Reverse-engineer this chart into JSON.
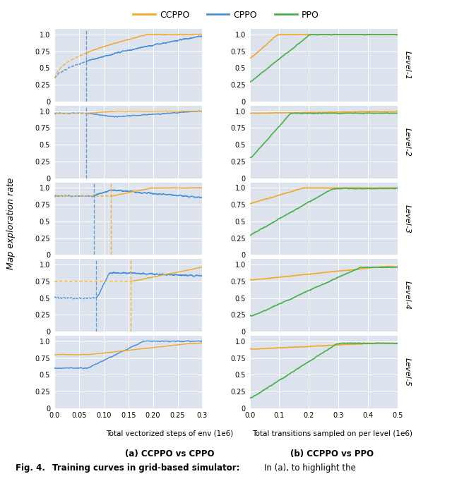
{
  "ccppo_color": "#f5a623",
  "cppo_color": "#4a90d9",
  "ppo_color": "#4caf50",
  "bg_color": "#dde3ec",
  "levels": [
    "Level-1",
    "Level-2",
    "Level-3",
    "Level-4",
    "Level-5"
  ],
  "left_xlim": [
    0.0,
    0.3
  ],
  "right_xlim": [
    0.0,
    0.5
  ],
  "left_xlabel": "Total vectorized steps of env (1e6)",
  "right_xlabel": "Total transitions sampled on per level (1e6)",
  "ylabel": "Map exploration rate",
  "left_title": "(a) CCPPO vs CPPO",
  "right_title": "(b) CCPPO vs PPO",
  "left_xticks": [
    0.0,
    0.05,
    0.1,
    0.15,
    0.2,
    0.25,
    0.3
  ],
  "right_xticks": [
    0.0,
    0.1,
    0.2,
    0.3,
    0.4,
    0.5
  ],
  "yticks": [
    0,
    0.25,
    0.5,
    0.75,
    1.0
  ],
  "yticklabels": [
    "0",
    "0.25",
    "0.5",
    "0.75",
    "1.0"
  ]
}
